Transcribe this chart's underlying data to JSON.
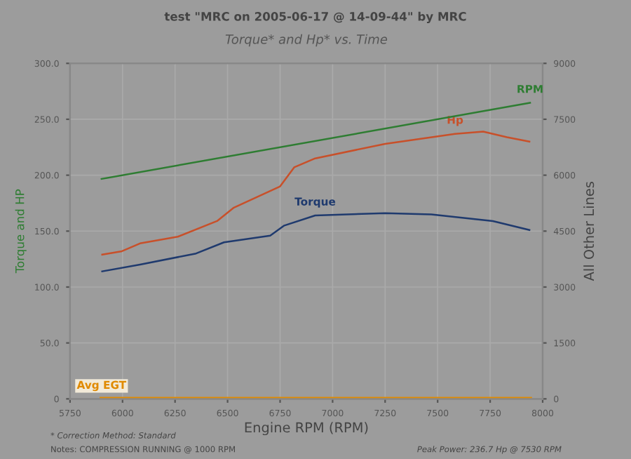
{
  "chart_data": {
    "type": "line",
    "title": "test \"MRC on 2005-06-17 @ 14-09-44\" by MRC",
    "subtitle": "Torque* and Hp* vs. Time",
    "xlabel": "Engine RPM (RPM)",
    "ylabel": "Torque and HP",
    "y2label": "All Other Lines",
    "series": [
      {
        "name": "RPM",
        "color": "#2e7d32",
        "axis": "y2",
        "x": [
          5900,
          7940
        ],
        "values": [
          5900,
          7940
        ]
      },
      {
        "name": "Hp",
        "color": "#c8502a",
        "x": [
          5903,
          5997,
          6083,
          6263,
          6450,
          6530,
          6750,
          6817,
          6917,
          7250,
          7583,
          7717,
          7830,
          7937
        ],
        "values": [
          129,
          132,
          139,
          145,
          159,
          171,
          190,
          207,
          215,
          228,
          237,
          239,
          234,
          230
        ]
      },
      {
        "name": "Torque",
        "color": "#1f3a6e",
        "x": [
          5903,
          6083,
          6350,
          6483,
          6703,
          6770,
          6917,
          7250,
          7470,
          7763,
          7937
        ],
        "values": [
          114,
          120,
          130,
          140,
          146,
          155,
          164,
          166,
          165,
          159,
          151
        ]
      },
      {
        "name": "Avg EGT",
        "color": "#e08a00",
        "axis": "y2",
        "x": [
          5900,
          7940
        ],
        "values": [
          0,
          0
        ]
      }
    ],
    "xlim": [
      5750,
      8000
    ],
    "xticks": [
      5750,
      6000,
      6250,
      6500,
      6750,
      7000,
      7250,
      7500,
      7750,
      8000
    ],
    "ylim": [
      0,
      300
    ],
    "yticks": [
      {
        "value": 0,
        "label": "0"
      },
      {
        "value": 50,
        "label": "50.0"
      },
      {
        "value": 100,
        "label": "100.0"
      },
      {
        "value": 150,
        "label": "150.0"
      },
      {
        "value": 200,
        "label": "200.0"
      },
      {
        "value": 250,
        "label": "250.0"
      },
      {
        "value": 300,
        "label": "300.0"
      }
    ],
    "y2lim": [
      0,
      9000
    ],
    "y2ticks": [
      0,
      1500,
      3000,
      4500,
      6000,
      7500,
      9000
    ],
    "grid": true,
    "annotations": [
      "* Correction Method: Standard",
      "Notes: COMPRESSION RUNNING @ 1000 RPM",
      "Peak Power: 236.7 Hp @ 7530 RPM"
    ]
  }
}
